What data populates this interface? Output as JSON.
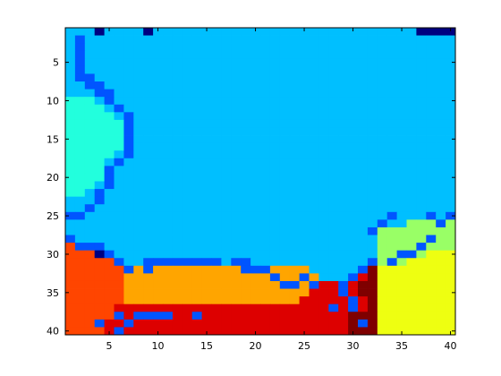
{
  "chart_data": {
    "type": "heatmap",
    "title": "",
    "xlabel": "",
    "ylabel": "",
    "xlim": [
      0.5,
      40.5
    ],
    "ylim": [
      0.5,
      40.5
    ],
    "y_reversed": true,
    "xticks": [
      5,
      10,
      15,
      20,
      25,
      30,
      35,
      40
    ],
    "yticks": [
      5,
      10,
      15,
      20,
      25,
      30,
      35,
      40
    ],
    "x_tick_labels": [
      "5",
      "10",
      "15",
      "20",
      "25",
      "30",
      "35",
      "40"
    ],
    "y_tick_labels": [
      "5",
      "10",
      "15",
      "20",
      "25",
      "30",
      "35",
      "40"
    ],
    "grid": false,
    "colormap": "jet",
    "color_index": {
      "0": "#000080",
      "1": "#0055ff",
      "2": "#00bfff",
      "3": "#22ffdd",
      "4": "#99ff66",
      "5": "#eeff11",
      "6": "#ffa500",
      "7": "#ff4500",
      "8": "#dd0000",
      "9": "#7f0000"
    },
    "rows": [
      "2222222222222222222222222222222222222222",
      "2222222222222222222222222222222222222222",
      "2222222222222222222222222222222222222222",
      "2222222222222222222222222222222222222222",
      "2222222222222222222222222222222222222222",
      "2222222222222222222222222222222222222222",
      "2222222222222222222222222222222222222222",
      "2222222222222222222222222222222222222222",
      "2222222222222222222222222222222222222222",
      "3332222222222222222222222222222222222222",
      "3333222222222222222222222222222222222222",
      "3333322222222222222222222222222222222222",
      "3333332222222222222222222222222222222222",
      "3333332222222222222222222222222222222222",
      "3333332222222222222222222222222222222222",
      "3333332222222222222222222222222222222222",
      "3333322222222222222222222222222222222222",
      "3333222222222222222222222222222222222222",
      "3333222222222222222222222222222222222222",
      "3333222222222222222222222222222222222222",
      "3332222222222222222222222222222222222222",
      "3322222222222222222222222222222222222222",
      "2222222222222222222222222222222222222222",
      "2222222222222222222222222222222222222222",
      "2222222222222222222222222222222222222222",
      "2222222222222222222222222222222222244444",
      "2222222222222222222222222222222244444444",
      "2222222222222222222222222222222244444444",
      "7777222222222222222222222222222244444444",
      "7777722222222222222222222222222244444555",
      "7777772222222222222222222222222544455555",
      "7777776666666666666666666222222955555555",
      "7777776666666666666666666622228955555555",
      "7777776666666666666666666688889955555555",
      "7777776666666666666666666888889955555555",
      "7777776666666666666666668888888955555555",
      "7777788888888888888888888888888955555555",
      "7777788888888888888888888888899955555555",
      "7777888888888888888888888888899955555555",
      "7777888888888888888888888888899955555555"
    ],
    "overrides": [
      [
        1,
        4,
        0
      ],
      [
        1,
        9,
        0
      ],
      [
        1,
        37,
        0
      ],
      [
        1,
        38,
        0
      ],
      [
        1,
        39,
        0
      ],
      [
        1,
        40,
        0
      ],
      [
        2,
        2,
        1
      ],
      [
        3,
        2,
        1
      ],
      [
        4,
        2,
        1
      ],
      [
        5,
        2,
        1
      ],
      [
        6,
        2,
        1
      ],
      [
        7,
        2,
        1
      ],
      [
        7,
        3,
        1
      ],
      [
        8,
        3,
        1
      ],
      [
        8,
        4,
        1
      ],
      [
        9,
        4,
        1
      ],
      [
        9,
        5,
        1
      ],
      [
        10,
        5,
        1
      ],
      [
        11,
        6,
        1
      ],
      [
        12,
        7,
        1
      ],
      [
        13,
        7,
        1
      ],
      [
        14,
        7,
        1
      ],
      [
        15,
        7,
        1
      ],
      [
        16,
        7,
        1
      ],
      [
        17,
        7,
        1
      ],
      [
        18,
        6,
        1
      ],
      [
        19,
        5,
        1
      ],
      [
        20,
        5,
        1
      ],
      [
        21,
        5,
        1
      ],
      [
        22,
        4,
        1
      ],
      [
        23,
        4,
        1
      ],
      [
        24,
        3,
        1
      ],
      [
        25,
        1,
        1
      ],
      [
        25,
        2,
        1
      ],
      [
        25,
        34,
        1
      ],
      [
        25,
        38,
        1
      ],
      [
        25,
        40,
        1
      ],
      [
        26,
        33,
        1
      ],
      [
        26,
        39,
        1
      ],
      [
        27,
        32,
        1
      ],
      [
        28,
        38,
        1
      ],
      [
        29,
        37,
        1
      ],
      [
        30,
        35,
        1
      ],
      [
        30,
        36,
        1
      ],
      [
        31,
        34,
        1
      ],
      [
        28,
        1,
        1
      ],
      [
        29,
        2,
        1
      ],
      [
        29,
        3,
        1
      ],
      [
        29,
        4,
        1
      ],
      [
        30,
        4,
        0
      ],
      [
        30,
        5,
        1
      ],
      [
        31,
        6,
        1
      ],
      [
        32,
        7,
        1
      ],
      [
        32,
        9,
        1
      ],
      [
        31,
        9,
        1
      ],
      [
        31,
        10,
        1
      ],
      [
        31,
        11,
        1
      ],
      [
        31,
        12,
        1
      ],
      [
        31,
        13,
        1
      ],
      [
        31,
        14,
        1
      ],
      [
        31,
        15,
        1
      ],
      [
        31,
        16,
        1
      ],
      [
        31,
        18,
        1
      ],
      [
        31,
        19,
        1
      ],
      [
        32,
        19,
        1
      ],
      [
        32,
        20,
        1
      ],
      [
        32,
        21,
        1
      ],
      [
        33,
        22,
        1
      ],
      [
        34,
        23,
        1
      ],
      [
        34,
        24,
        1
      ],
      [
        33,
        25,
        1
      ],
      [
        34,
        26,
        1
      ],
      [
        34,
        29,
        1
      ],
      [
        33,
        30,
        1
      ],
      [
        32,
        31,
        1
      ],
      [
        31,
        32,
        1
      ],
      [
        35,
        29,
        1
      ],
      [
        37,
        30,
        1
      ],
      [
        39,
        31,
        1
      ],
      [
        37,
        28,
        1
      ],
      [
        38,
        8,
        1
      ],
      [
        38,
        9,
        1
      ],
      [
        38,
        10,
        1
      ],
      [
        38,
        11,
        1
      ],
      [
        38,
        14,
        1
      ],
      [
        39,
        7,
        1
      ],
      [
        38,
        6,
        1
      ],
      [
        40,
        6,
        1
      ],
      [
        39,
        4,
        1
      ],
      [
        37,
        30,
        1
      ],
      [
        36,
        30,
        1
      ]
    ]
  }
}
